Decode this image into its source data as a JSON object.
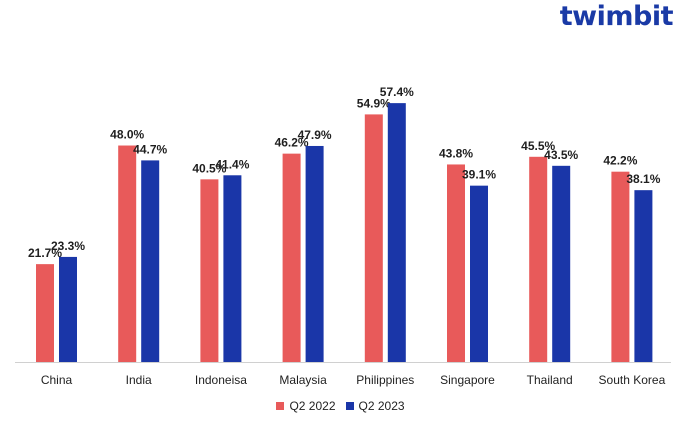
{
  "brand": "twimbit",
  "chart_data": {
    "type": "bar",
    "categories": [
      "China",
      "India",
      "Indoneisa",
      "Malaysia",
      "Philippines",
      "Singapore",
      "Thailand",
      "South Korea"
    ],
    "series": [
      {
        "name": "Q2 2022",
        "color": "#e85a5a",
        "values": [
          21.7,
          48.0,
          40.5,
          46.2,
          54.9,
          43.8,
          45.5,
          42.2
        ],
        "labels": [
          "21.7%",
          "48.0%",
          "40.5%",
          "46.2%",
          "54.9%",
          "43.8%",
          "45.5%",
          "42.2%"
        ]
      },
      {
        "name": "Q2 2023",
        "color": "#1a36a8",
        "values": [
          23.3,
          44.7,
          41.4,
          47.9,
          57.4,
          39.1,
          43.5,
          38.1
        ],
        "labels": [
          "23.3%",
          "44.7%",
          "41.4%",
          "47.9%",
          "57.4%",
          "39.1%",
          "43.5%",
          "38.1%"
        ]
      }
    ],
    "ylim": [
      0,
      60
    ],
    "legend": "bottom-center",
    "grid": false
  }
}
